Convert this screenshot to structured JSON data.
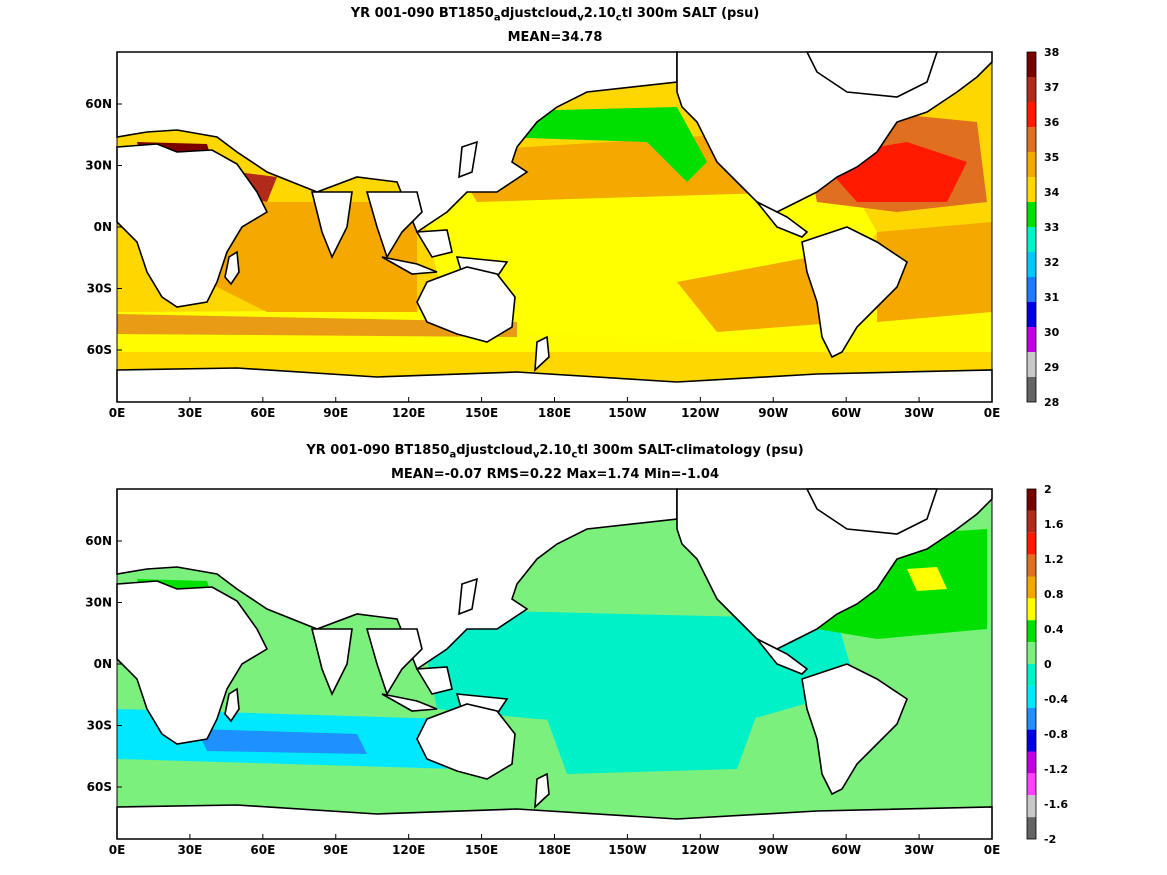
{
  "panels": [
    {
      "title_prefix": "YR 001-090 BT1850",
      "title_sub1": "a",
      "title_mid1": "djustcloud",
      "title_sub2": "v",
      "title_mid2": "2.10",
      "title_sub3": "c",
      "title_suffix": "tl 300m SALT (psu)",
      "stats": "MEAN=34.78",
      "colorbar_labels": [
        "38",
        "37",
        "36",
        "35",
        "34",
        "33",
        "32",
        "31",
        "30",
        "29",
        "28"
      ],
      "colorbar_colors": [
        "#7a0000",
        "#b22a1a",
        "#ff1a00",
        "#e07020",
        "#f5a800",
        "#ffd700",
        "#00e000",
        "#00f0c8",
        "#00c8ff",
        "#1e7bff",
        "#0000e0",
        "#c000e0",
        "#c8c8c8",
        "#646464"
      ]
    },
    {
      "title_prefix": "YR 001-090 BT1850",
      "title_sub1": "a",
      "title_mid1": "djustcloud",
      "title_sub2": "v",
      "title_mid2": "2.10",
      "title_sub3": "c",
      "title_suffix": "tl 300m SALT-climatology (psu)",
      "stats": "MEAN=-0.07   RMS=0.22   Max=1.74   Min=-1.04",
      "colorbar_labels": [
        "2",
        "1.6",
        "1.2",
        "0.8",
        "0.4",
        "0",
        "-0.4",
        "-0.8",
        "-1.2",
        "-1.6",
        "-2"
      ],
      "colorbar_colors": [
        "#7a0000",
        "#b22a1a",
        "#ff1a00",
        "#e07020",
        "#f5a800",
        "#ffff00",
        "#00e000",
        "#7cf07c",
        "#00f0c8",
        "#00e8ff",
        "#1e90ff",
        "#0000e0",
        "#c000e0",
        "#ff40ff",
        "#c8c8c8",
        "#646464"
      ]
    }
  ],
  "axes": {
    "x_ticks": [
      "0E",
      "30E",
      "60E",
      "90E",
      "120E",
      "150E",
      "180E",
      "150W",
      "120W",
      "90W",
      "60W",
      "30W",
      "0E"
    ],
    "y_ticks": [
      "60N",
      "30N",
      "0N",
      "30S",
      "60S"
    ]
  }
}
